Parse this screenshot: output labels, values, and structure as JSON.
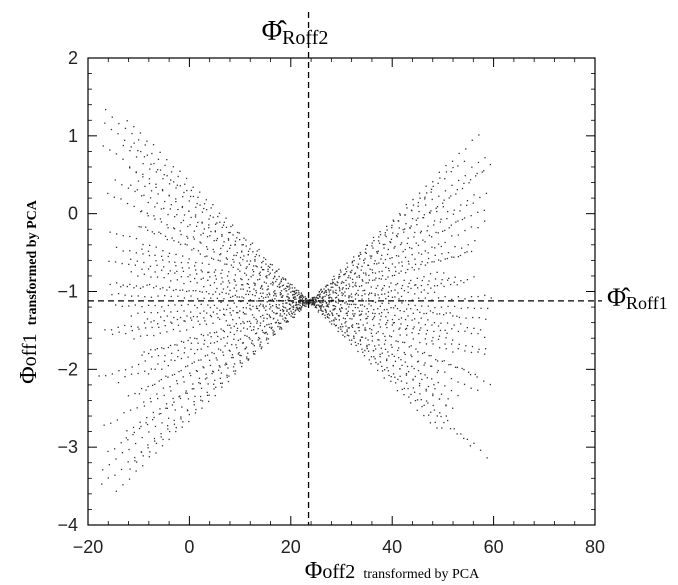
{
  "chart_data": {
    "type": "scatter",
    "title": "",
    "xlabel": {
      "symbol": "Φ",
      "subscript": "off2",
      "suffix": "transformed by PCA"
    },
    "ylabel": {
      "symbol": "Φ",
      "subscript": "off1",
      "suffix": "transformed by PCA"
    },
    "xlim": [
      -20,
      80
    ],
    "ylim": [
      -4,
      2
    ],
    "x_ticks": [
      -20,
      0,
      20,
      40,
      60,
      80
    ],
    "y_ticks": [
      -4,
      -3,
      -2,
      -1,
      0,
      1,
      2
    ],
    "x_tick_labels": [
      "−20",
      "0",
      "20",
      "40",
      "60",
      "80"
    ],
    "y_tick_labels": [
      "−4",
      "−3",
      "−2",
      "−1",
      "0",
      "1",
      "2"
    ],
    "grid": false,
    "point_color": "#333333",
    "reference_lines": [
      {
        "orientation": "vertical",
        "value": 23.5,
        "style": "dashed",
        "label": {
          "symbol": "Φ̂",
          "subscript": "Roff2"
        }
      },
      {
        "orientation": "horizontal",
        "value": -1.12,
        "style": "dashed",
        "label": {
          "symbol": "Φ̂",
          "subscript": "Roff1"
        }
      }
    ],
    "crossing_point": {
      "x": 23.5,
      "y": -1.12
    },
    "fan_lines": {
      "count": 46,
      "slope_range": [
        -0.065,
        0.065
      ],
      "x_start_range": [
        -18,
        -8
      ],
      "x_end_range": [
        48,
        60
      ],
      "point_spacing_x": 1.3
    }
  }
}
